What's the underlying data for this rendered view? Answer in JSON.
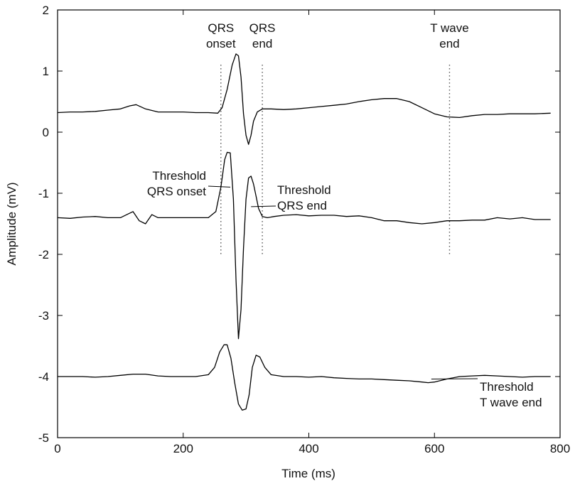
{
  "chart_data": {
    "type": "line",
    "title": "",
    "xlabel": "Time (ms)",
    "ylabel": "Amplitude (mV)",
    "xlim": [
      0,
      800
    ],
    "ylim": [
      -5,
      2
    ],
    "xticks": [
      0,
      200,
      400,
      600,
      800
    ],
    "yticks": [
      2,
      1,
      0,
      -1,
      -2,
      -3,
      -4,
      -5
    ],
    "grid": false,
    "series": [
      {
        "x": [
          0,
          20,
          40,
          60,
          80,
          100,
          115,
          125,
          140,
          160,
          180,
          200,
          220,
          240,
          255,
          262,
          270,
          278,
          284,
          288,
          292,
          296,
          300,
          304,
          308,
          312,
          318,
          326,
          340,
          360,
          380,
          400,
          420,
          440,
          460,
          480,
          500,
          520,
          540,
          560,
          580,
          600,
          620,
          640,
          660,
          680,
          700,
          720,
          740,
          760,
          785
        ],
        "values": [
          0.32,
          0.33,
          0.33,
          0.34,
          0.36,
          0.38,
          0.43,
          0.45,
          0.38,
          0.33,
          0.33,
          0.33,
          0.32,
          0.32,
          0.31,
          0.4,
          0.7,
          1.1,
          1.28,
          1.25,
          0.9,
          0.3,
          -0.05,
          -0.2,
          -0.05,
          0.18,
          0.33,
          0.38,
          0.38,
          0.37,
          0.38,
          0.4,
          0.42,
          0.44,
          0.46,
          0.5,
          0.53,
          0.55,
          0.55,
          0.5,
          0.4,
          0.3,
          0.25,
          0.24,
          0.27,
          0.29,
          0.29,
          0.3,
          0.3,
          0.3,
          0.31
        ]
      },
      {
        "x": [
          0,
          20,
          40,
          60,
          80,
          100,
          120,
          130,
          140,
          150,
          160,
          180,
          200,
          220,
          240,
          252,
          260,
          266,
          270,
          275,
          280,
          284,
          288,
          292,
          296,
          300,
          304,
          308,
          312,
          316,
          320,
          326,
          334,
          345,
          360,
          380,
          400,
          420,
          440,
          460,
          480,
          500,
          520,
          540,
          560,
          580,
          600,
          620,
          640,
          660,
          680,
          700,
          720,
          740,
          760,
          785
        ],
        "values": [
          -1.4,
          -1.41,
          -1.39,
          -1.38,
          -1.4,
          -1.4,
          -1.3,
          -1.45,
          -1.5,
          -1.35,
          -1.4,
          -1.4,
          -1.4,
          -1.4,
          -1.4,
          -1.3,
          -0.9,
          -0.45,
          -0.33,
          -0.34,
          -1.1,
          -2.4,
          -3.38,
          -2.9,
          -1.9,
          -1.1,
          -0.75,
          -0.72,
          -0.85,
          -1.05,
          -1.25,
          -1.38,
          -1.4,
          -1.38,
          -1.36,
          -1.35,
          -1.37,
          -1.36,
          -1.36,
          -1.38,
          -1.37,
          -1.4,
          -1.45,
          -1.45,
          -1.48,
          -1.5,
          -1.48,
          -1.45,
          -1.45,
          -1.44,
          -1.44,
          -1.4,
          -1.42,
          -1.4,
          -1.43,
          -1.43
        ]
      },
      {
        "x": [
          0,
          20,
          40,
          60,
          80,
          100,
          120,
          140,
          160,
          180,
          200,
          220,
          240,
          250,
          258,
          265,
          270,
          276,
          282,
          288,
          294,
          300,
          305,
          310,
          316,
          322,
          330,
          340,
          360,
          380,
          400,
          420,
          440,
          460,
          480,
          500,
          520,
          540,
          560,
          580,
          590,
          600,
          620,
          640,
          660,
          680,
          700,
          720,
          740,
          760,
          785
        ],
        "values": [
          -4.0,
          -4.0,
          -4.0,
          -4.01,
          -4.0,
          -3.98,
          -3.96,
          -3.96,
          -3.99,
          -4.0,
          -4.0,
          -4.0,
          -3.97,
          -3.85,
          -3.6,
          -3.48,
          -3.48,
          -3.7,
          -4.1,
          -4.45,
          -4.55,
          -4.53,
          -4.3,
          -3.85,
          -3.65,
          -3.68,
          -3.85,
          -3.97,
          -4.0,
          -4.0,
          -4.01,
          -4.0,
          -4.02,
          -4.03,
          -4.04,
          -4.04,
          -4.05,
          -4.06,
          -4.07,
          -4.09,
          -4.1,
          -4.09,
          -4.04,
          -4.0,
          -3.99,
          -3.98,
          -3.99,
          -4.0,
          -4.01,
          -4.0,
          -4.0
        ]
      }
    ],
    "markers": [
      {
        "x": 260,
        "label": [
          "QRS",
          "onset"
        ]
      },
      {
        "x": 326,
        "label": [
          "QRS",
          "end"
        ]
      },
      {
        "x": 624,
        "label": [
          "T wave",
          "end"
        ]
      }
    ],
    "annotations": [
      {
        "lines": [
          "Threshold",
          "QRS onset"
        ],
        "pointer": {
          "x": 275,
          "y": -0.9
        }
      },
      {
        "lines": [
          "Threshold",
          "QRS end"
        ],
        "pointer": {
          "x": 308,
          "y": -1.22
        }
      },
      {
        "lines": [
          "Threshold",
          "T wave end"
        ],
        "pointer": {
          "x": 595,
          "y": -4.04
        }
      }
    ]
  }
}
